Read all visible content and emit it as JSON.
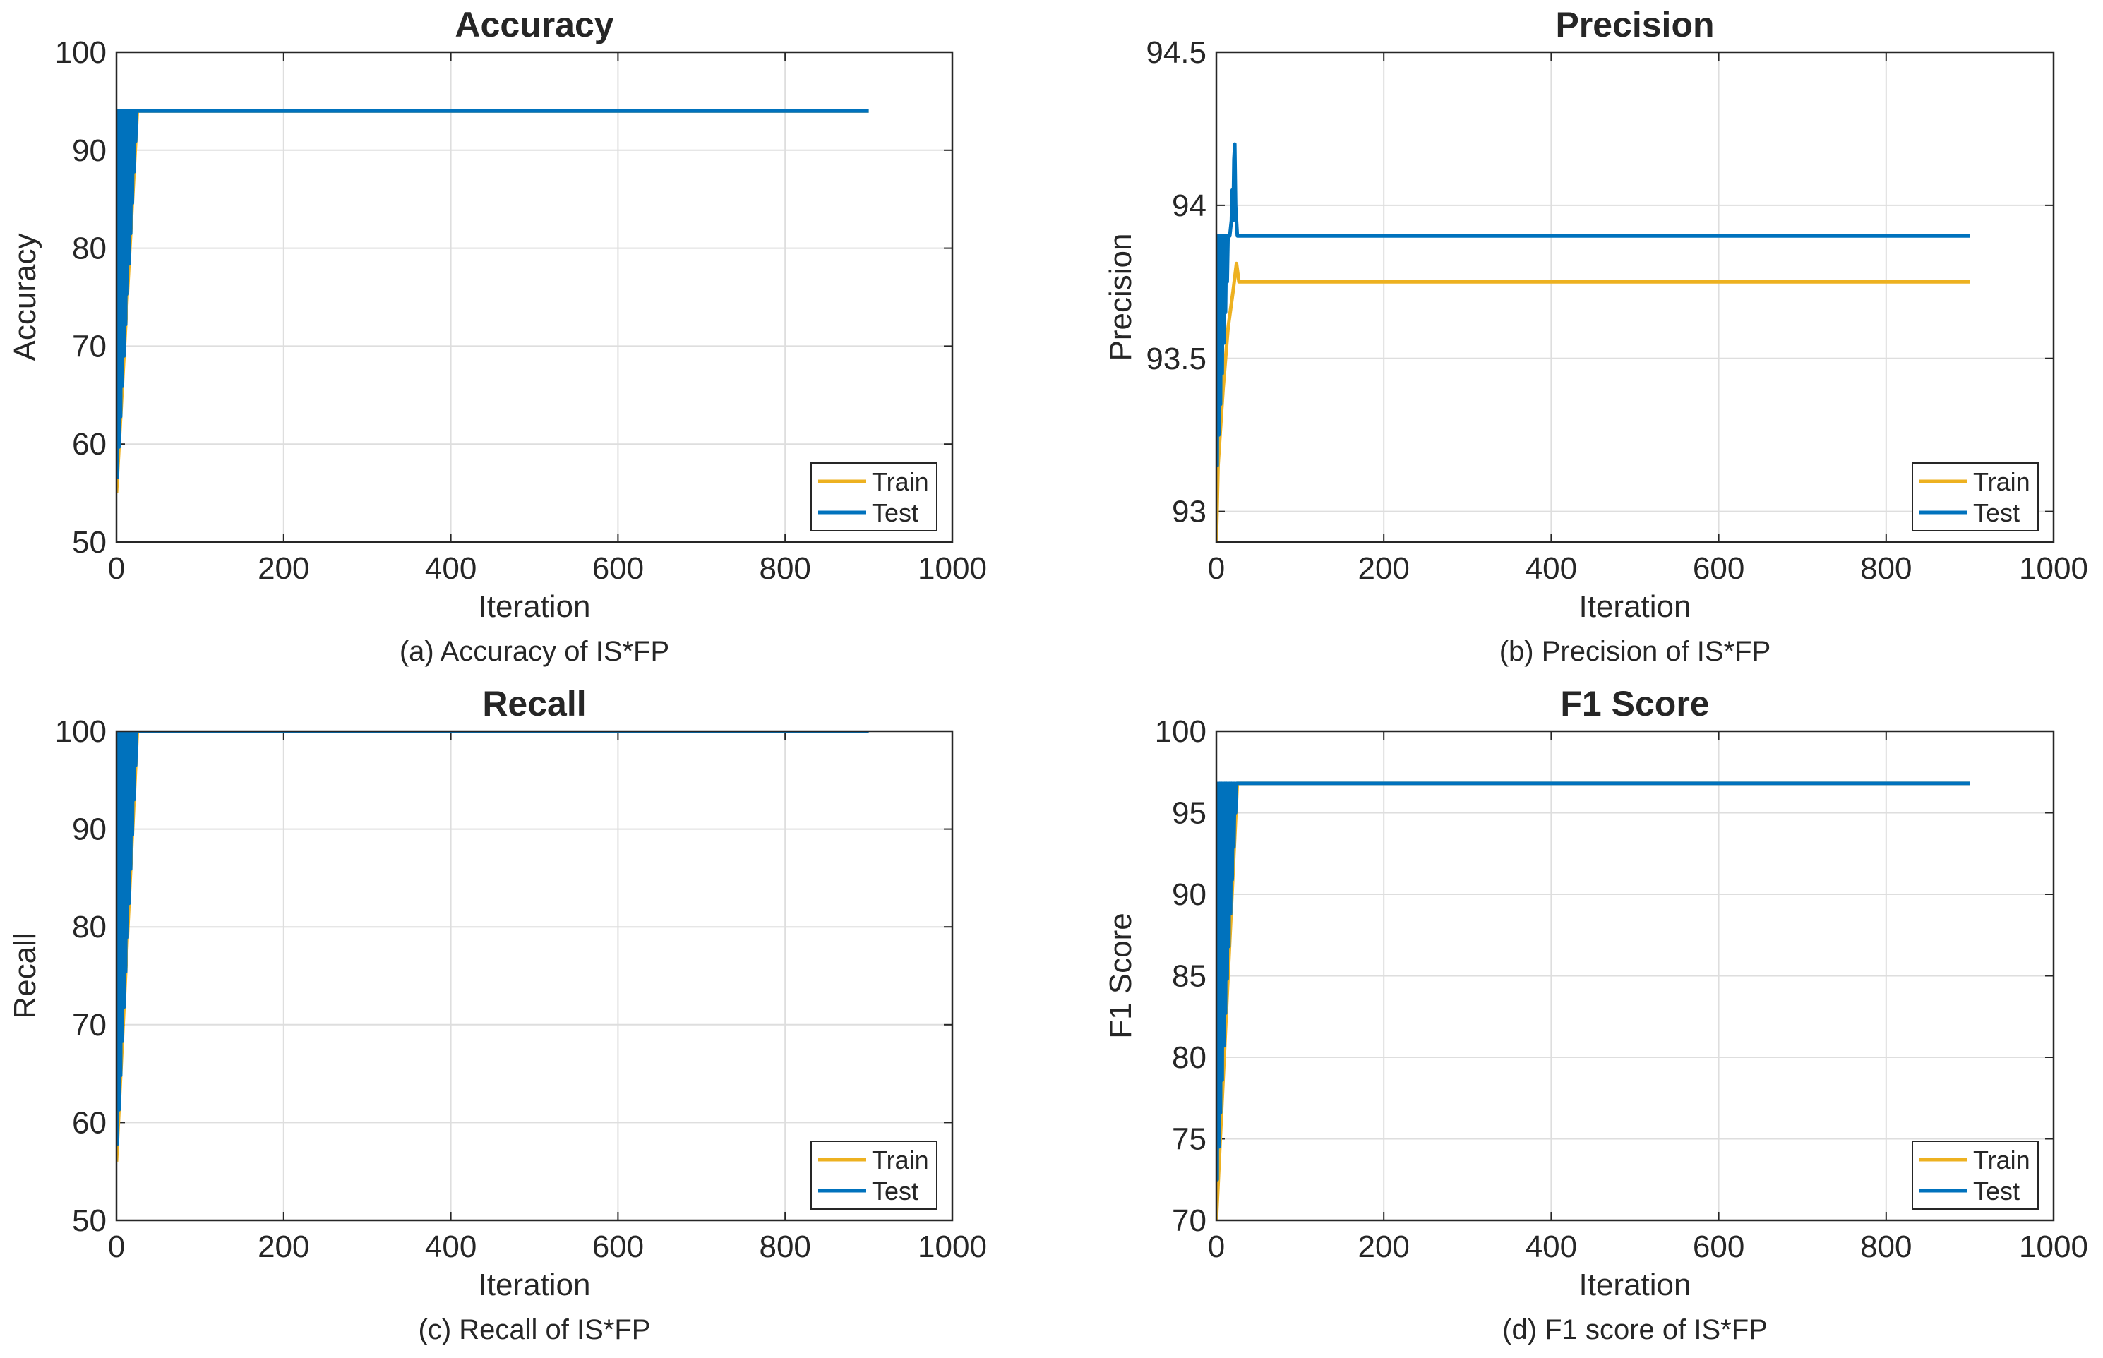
{
  "colors": {
    "train": "#EDB120",
    "test": "#0072BD",
    "grid": "#dedede",
    "axis": "#262626"
  },
  "chart_data": [
    {
      "type": "line",
      "title": "Accuracy",
      "xlabel": "Iteration",
      "ylabel": "Accuracy",
      "caption": "(a) Accuracy of IS*FP",
      "xlim": [
        0,
        1000
      ],
      "ylim": [
        50,
        100
      ],
      "xticks": [
        0,
        200,
        400,
        600,
        800,
        1000
      ],
      "yticks": [
        50,
        60,
        70,
        80,
        90,
        100
      ],
      "grid": true,
      "legend_placement": "bottom-right",
      "series": [
        {
          "name": "Train",
          "color": "#EDB120",
          "points": [
            [
              0,
              55
            ],
            [
              25,
              94
            ],
            [
              900,
              94
            ]
          ]
        },
        {
          "name": "Test",
          "color": "#0072BD",
          "points": [
            [
              0,
              94
            ],
            [
              1,
              56.6
            ],
            [
              2,
              94
            ],
            [
              3,
              59.7
            ],
            [
              4,
              94
            ],
            [
              5,
              62.8
            ],
            [
              6,
              94
            ],
            [
              7,
              65.9
            ],
            [
              8,
              94
            ],
            [
              9,
              69
            ],
            [
              10,
              94
            ],
            [
              11,
              72.2
            ],
            [
              12,
              94
            ],
            [
              13,
              75.3
            ],
            [
              14,
              94
            ],
            [
              15,
              78.4
            ],
            [
              16,
              94
            ],
            [
              17,
              81.5
            ],
            [
              18,
              94
            ],
            [
              19,
              84.6
            ],
            [
              20,
              94
            ],
            [
              21,
              87.8
            ],
            [
              22,
              94
            ],
            [
              23,
              90.9
            ],
            [
              24,
              94
            ],
            [
              25,
              94
            ],
            [
              900,
              94
            ]
          ]
        }
      ]
    },
    {
      "type": "line",
      "title": "Precision",
      "xlabel": "Iteration",
      "ylabel": "Precision",
      "caption": "(b) Precision of IS*FP",
      "xlim": [
        0,
        1000
      ],
      "ylim": [
        92.9,
        94.5
      ],
      "xticks": [
        0,
        200,
        400,
        600,
        800,
        1000
      ],
      "yticks": [
        93,
        93.5,
        94,
        94.5
      ],
      "grid": true,
      "legend_placement": "bottom-right",
      "series": [
        {
          "name": "Train",
          "color": "#EDB120",
          "points": [
            [
              0,
              92.9
            ],
            [
              2,
              93.15
            ],
            [
              8,
              93.4
            ],
            [
              14,
              93.6
            ],
            [
              20,
              93.72
            ],
            [
              24,
              93.81
            ],
            [
              27,
              93.75
            ],
            [
              900,
              93.75
            ]
          ]
        },
        {
          "name": "Test",
          "color": "#0072BD",
          "points": [
            [
              0,
              93.9
            ],
            [
              1,
              93.15
            ],
            [
              2,
              93.9
            ],
            [
              3,
              93.25
            ],
            [
              4,
              93.9
            ],
            [
              5,
              93.35
            ],
            [
              6,
              93.9
            ],
            [
              7,
              93.45
            ],
            [
              8,
              93.9
            ],
            [
              9,
              93.55
            ],
            [
              10,
              93.9
            ],
            [
              11,
              93.65
            ],
            [
              12,
              93.9
            ],
            [
              13,
              93.75
            ],
            [
              14,
              93.9
            ],
            [
              16,
              93.9
            ],
            [
              18,
              93.95
            ],
            [
              19,
              94.05
            ],
            [
              20,
              93.95
            ],
            [
              21,
              94.15
            ],
            [
              22,
              94.2
            ],
            [
              23,
              94.0
            ],
            [
              25,
              93.9
            ],
            [
              900,
              93.9
            ]
          ]
        }
      ]
    },
    {
      "type": "line",
      "title": "Recall",
      "xlabel": "Iteration",
      "ylabel": "Recall",
      "caption": "(c) Recall of IS*FP",
      "xlim": [
        0,
        1000
      ],
      "ylim": [
        50,
        100
      ],
      "xticks": [
        0,
        200,
        400,
        600,
        800,
        1000
      ],
      "yticks": [
        50,
        60,
        70,
        80,
        90,
        100
      ],
      "grid": true,
      "legend_placement": "bottom-right",
      "series": [
        {
          "name": "Train",
          "color": "#EDB120",
          "points": [
            [
              0,
              56
            ],
            [
              25,
              100
            ],
            [
              900,
              100
            ]
          ]
        },
        {
          "name": "Test",
          "color": "#0072BD",
          "points": [
            [
              0,
              100
            ],
            [
              1,
              57.8
            ],
            [
              2,
              100
            ],
            [
              3,
              61.3
            ],
            [
              4,
              100
            ],
            [
              5,
              64.8
            ],
            [
              6,
              100
            ],
            [
              7,
              68.3
            ],
            [
              8,
              100
            ],
            [
              9,
              71.8
            ],
            [
              10,
              100
            ],
            [
              11,
              75.4
            ],
            [
              12,
              100
            ],
            [
              13,
              78.9
            ],
            [
              14,
              100
            ],
            [
              15,
              82.4
            ],
            [
              16,
              100
            ],
            [
              17,
              85.9
            ],
            [
              18,
              100
            ],
            [
              19,
              89.4
            ],
            [
              20,
              100
            ],
            [
              21,
              93
            ],
            [
              22,
              100
            ],
            [
              23,
              96.5
            ],
            [
              24,
              100
            ],
            [
              25,
              100
            ],
            [
              900,
              100
            ]
          ]
        }
      ]
    },
    {
      "type": "line",
      "title": "F1 Score",
      "xlabel": "Iteration",
      "ylabel": "F1 Score",
      "caption": "(d) F1 score of IS*FP",
      "xlim": [
        0,
        1000
      ],
      "ylim": [
        70,
        100
      ],
      "xticks": [
        0,
        200,
        400,
        600,
        800,
        1000
      ],
      "yticks": [
        70,
        75,
        80,
        85,
        90,
        95,
        100
      ],
      "grid": true,
      "legend_placement": "bottom-right",
      "series": [
        {
          "name": "Train",
          "color": "#EDB120",
          "points": [
            [
              0,
              70
            ],
            [
              25,
              96.8
            ],
            [
              900,
              96.8
            ]
          ]
        },
        {
          "name": "Test",
          "color": "#0072BD",
          "points": [
            [
              0,
              96.8
            ],
            [
              1,
              72.5
            ],
            [
              2,
              96.8
            ],
            [
              3,
              74.5
            ],
            [
              4,
              96.8
            ],
            [
              5,
              76.6
            ],
            [
              6,
              96.8
            ],
            [
              7,
              78.6
            ],
            [
              8,
              96.8
            ],
            [
              9,
              80.7
            ],
            [
              10,
              96.8
            ],
            [
              11,
              82.7
            ],
            [
              12,
              96.8
            ],
            [
              13,
              84.8
            ],
            [
              14,
              96.8
            ],
            [
              15,
              86.8
            ],
            [
              16,
              96.8
            ],
            [
              17,
              88.8
            ],
            [
              18,
              96.8
            ],
            [
              19,
              90.9
            ],
            [
              20,
              96.8
            ],
            [
              21,
              92.9
            ],
            [
              22,
              96.8
            ],
            [
              23,
              95.0
            ],
            [
              24,
              96.8
            ],
            [
              25,
              96.8
            ],
            [
              900,
              96.8
            ]
          ]
        }
      ]
    }
  ]
}
